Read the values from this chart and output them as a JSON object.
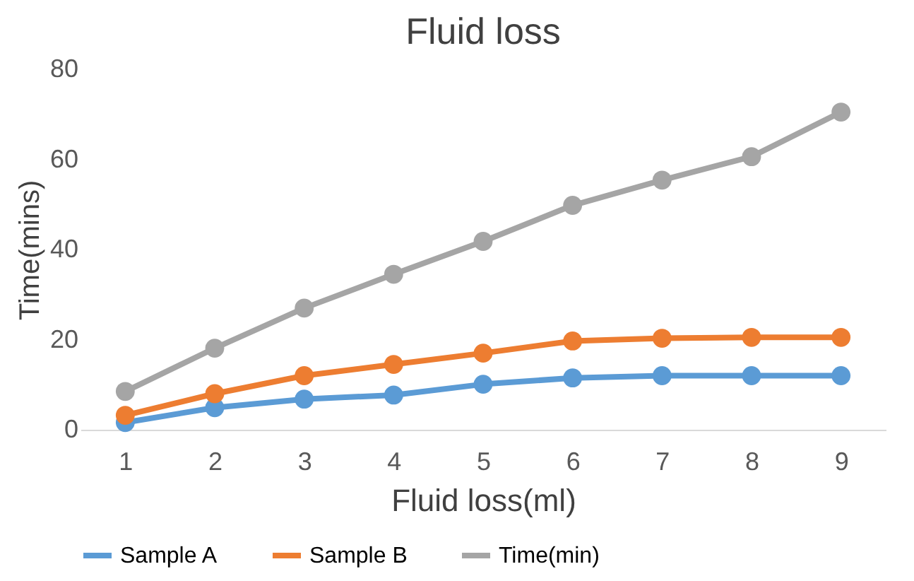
{
  "chart_data": {
    "type": "line",
    "title": "Fluid loss",
    "xlabel": "Fluid loss(ml)",
    "ylabel": "Time(mins)",
    "categories": [
      "1",
      "2",
      "3",
      "4",
      "5",
      "6",
      "7",
      "8",
      "9"
    ],
    "series": [
      {
        "name": "Sample A",
        "color": "#5b9bd5",
        "values": [
          1.6,
          4.9,
          6.8,
          7.7,
          10.1,
          11.5,
          12,
          12,
          12
        ]
      },
      {
        "name": "Sample B",
        "color": "#ed7d31",
        "values": [
          3.2,
          8,
          12,
          14.5,
          17,
          19.7,
          20.3,
          20.5,
          20.5
        ]
      },
      {
        "name": "Time(min)",
        "color": "#a5a5a5",
        "values": [
          8.5,
          18.1,
          27,
          34.5,
          41.8,
          49.8,
          55.4,
          60.6,
          70.5
        ]
      }
    ],
    "ylim": [
      0,
      80
    ],
    "yticks": [
      0,
      20,
      40,
      60,
      80
    ],
    "grid": false,
    "legend": "bottom",
    "marker": "circle",
    "line_style": "solid"
  }
}
